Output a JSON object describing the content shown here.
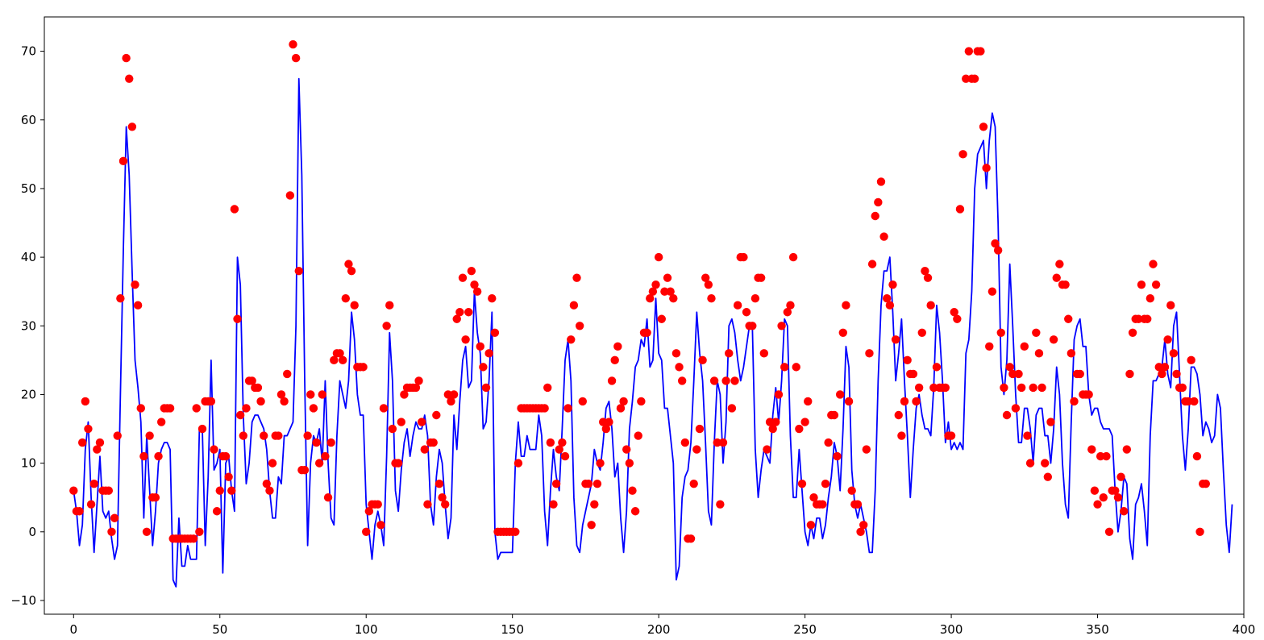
{
  "chart_data": {
    "type": "line+scatter",
    "title": "",
    "xlabel": "",
    "ylabel": "",
    "xlim": [
      -10,
      400
    ],
    "ylim": [
      -12,
      75
    ],
    "x_ticks": [
      0,
      50,
      100,
      150,
      200,
      250,
      300,
      350,
      400
    ],
    "y_ticks": [
      -10,
      0,
      10,
      20,
      30,
      40,
      50,
      60,
      70
    ],
    "grid": false,
    "legend": "none",
    "colors": {
      "line": "#0000ff",
      "points": "#ff0000"
    },
    "series": [
      {
        "type": "line",
        "x_start": 0,
        "x_step": 1,
        "values": [
          6,
          3,
          -2,
          1,
          12,
          16,
          5,
          -3,
          4,
          11,
          3,
          2,
          3,
          -1,
          -4,
          -2,
          20,
          41,
          59,
          52,
          38,
          25,
          21,
          16,
          2,
          14,
          6,
          -2,
          3,
          10,
          12,
          13,
          13,
          12,
          -7,
          -8,
          2,
          -5,
          -5,
          -2,
          -4,
          -4,
          -4,
          15,
          15,
          -2,
          8,
          25,
          9,
          10,
          12,
          -6,
          10,
          11,
          6,
          3,
          40,
          36,
          17,
          7,
          10,
          16,
          17,
          17,
          16,
          15,
          12,
          6,
          2,
          2,
          8,
          7,
          14,
          14,
          15,
          16,
          30,
          66,
          52,
          22,
          -2,
          10,
          14,
          13,
          15,
          10,
          22,
          10,
          2,
          1,
          14,
          22,
          20,
          18,
          22,
          32,
          28,
          20,
          17,
          17,
          4,
          0,
          -4,
          1,
          3,
          1,
          -2,
          11,
          29,
          22,
          6,
          3,
          9,
          13,
          15,
          11,
          14,
          16,
          15,
          15,
          17,
          14,
          4,
          1,
          8,
          12,
          10,
          4,
          -1,
          2,
          17,
          12,
          19,
          25,
          27,
          21,
          22,
          35,
          29,
          26,
          15,
          16,
          22,
          32,
          0,
          -4,
          -3,
          -3,
          -3,
          -3,
          -3,
          10,
          16,
          11,
          11,
          14,
          12,
          12,
          12,
          17,
          14,
          3,
          -2,
          6,
          12,
          8,
          6,
          15,
          25,
          28,
          22,
          5,
          -2,
          -3,
          1,
          3,
          5,
          7,
          12,
          10,
          9,
          13,
          18,
          19,
          15,
          8,
          10,
          2,
          -3,
          3,
          15,
          19,
          24,
          25,
          28,
          27,
          31,
          24,
          25,
          34,
          26,
          25,
          18,
          18,
          14,
          10,
          -7,
          -5,
          5,
          8,
          9,
          13,
          22,
          32,
          26,
          22,
          13,
          3,
          1,
          13,
          22,
          20,
          10,
          16,
          30,
          31,
          29,
          25,
          22,
          24,
          27,
          30,
          30,
          12,
          5,
          9,
          12,
          11,
          10,
          17,
          21,
          16,
          22,
          31,
          30,
          14,
          5,
          5,
          12,
          6,
          0,
          -2,
          1,
          -1,
          2,
          2,
          -1,
          1,
          5,
          8,
          13,
          11,
          6,
          15,
          27,
          24,
          9,
          4,
          2,
          4,
          2,
          0,
          -3,
          -3,
          6,
          22,
          33,
          38,
          38,
          40,
          32,
          22,
          26,
          31,
          22,
          14,
          5,
          12,
          18,
          20,
          17,
          15,
          15,
          14,
          21,
          33,
          29,
          22,
          13,
          16,
          12,
          13,
          12,
          13,
          12,
          26,
          28,
          35,
          50,
          55,
          56,
          57,
          50,
          57,
          61,
          59,
          45,
          24,
          20,
          25,
          39,
          30,
          20,
          13,
          13,
          18,
          18,
          15,
          10,
          17,
          18,
          18,
          14,
          14,
          10,
          15,
          24,
          20,
          10,
          4,
          2,
          16,
          28,
          30,
          31,
          27,
          27,
          20,
          17,
          18,
          18,
          16,
          15,
          15,
          15,
          14,
          6,
          0,
          3,
          8,
          7,
          -1,
          -4,
          4,
          5,
          7,
          3,
          -2,
          14,
          22,
          22,
          23,
          24,
          28,
          23,
          21,
          30,
          32,
          23,
          14,
          9,
          15,
          24,
          24,
          23,
          20,
          14,
          16,
          15,
          13,
          14,
          20,
          18,
          9,
          1,
          -3,
          4
        ]
      },
      {
        "type": "scatter",
        "x_start": 0,
        "x_step": 1,
        "values": [
          6,
          3,
          3,
          13,
          19,
          15,
          4,
          7,
          12,
          13,
          6,
          6,
          6,
          0,
          2,
          14,
          34,
          54,
          69,
          66,
          59,
          36,
          33,
          18,
          11,
          0,
          14,
          5,
          5,
          11,
          16,
          18,
          18,
          18,
          -1,
          -1,
          -1,
          -1,
          -1,
          -1,
          -1,
          -1,
          18,
          0,
          15,
          19,
          19,
          19,
          12,
          3,
          6,
          11,
          11,
          8,
          6,
          47,
          31,
          17,
          14,
          18,
          22,
          22,
          21,
          21,
          19,
          14,
          7,
          6,
          10,
          14,
          14,
          20,
          19,
          23,
          49,
          71,
          69,
          38,
          9,
          9,
          14,
          20,
          18,
          13,
          10,
          20,
          11,
          5,
          13,
          25,
          26,
          26,
          25,
          34,
          39,
          38,
          33,
          24,
          24,
          24,
          0,
          3,
          4,
          4,
          4,
          1,
          18,
          30,
          33,
          15,
          10,
          10,
          16,
          20,
          21,
          21,
          21,
          21,
          22,
          16,
          12,
          4,
          13,
          13,
          17,
          7,
          5,
          4,
          20,
          19,
          20,
          31,
          32,
          37,
          28,
          32,
          38,
          36,
          35,
          27,
          24,
          21,
          26,
          34,
          29,
          0,
          0,
          0,
          0,
          0,
          0,
          0,
          10,
          18,
          18,
          18,
          18,
          18,
          18,
          18,
          18,
          18,
          21,
          13,
          4,
          7,
          12,
          13,
          11,
          18,
          28,
          33,
          37,
          30,
          19,
          7,
          7,
          1,
          4,
          7,
          10,
          16,
          15,
          16,
          22,
          25,
          27,
          18,
          19,
          12,
          10,
          6,
          3,
          14,
          19,
          29,
          29,
          34,
          35,
          36,
          40,
          31,
          35,
          37,
          35,
          34,
          26,
          24,
          22,
          13,
          -1,
          -1,
          7,
          12,
          15,
          25,
          37,
          36,
          34,
          22,
          13,
          4,
          13,
          22,
          26,
          18,
          22,
          33,
          40,
          40,
          32,
          30,
          30,
          34,
          37,
          37,
          26,
          12,
          16,
          15,
          16,
          20,
          30,
          24,
          32,
          33,
          40,
          24,
          15,
          7,
          16,
          19,
          1,
          5,
          4,
          4,
          4,
          7,
          13,
          17,
          17,
          11,
          20,
          29,
          33,
          19,
          6,
          4,
          4,
          0,
          1,
          12,
          26,
          39,
          46,
          48,
          51,
          43,
          34,
          33,
          36,
          28,
          17,
          14,
          19,
          25,
          23,
          23,
          19,
          21,
          29,
          38,
          37,
          33,
          21,
          24,
          21,
          21,
          21,
          14,
          14,
          32,
          31,
          47,
          55,
          66,
          70,
          66,
          66,
          70,
          70,
          59,
          53,
          27,
          35,
          42,
          41,
          29,
          21,
          17,
          24,
          23,
          18,
          23,
          21,
          27,
          14,
          10,
          21,
          29,
          26,
          21,
          10,
          8,
          16,
          28,
          37,
          39,
          36,
          36,
          31,
          26,
          19,
          23,
          23,
          20,
          20,
          20,
          12,
          6,
          4,
          11,
          5,
          11,
          0,
          6,
          6,
          5,
          8,
          3,
          12,
          23,
          29,
          31,
          31,
          36,
          31,
          31,
          34,
          39,
          36,
          24,
          23,
          24,
          28,
          33,
          26,
          23,
          21,
          21,
          19,
          19,
          25,
          19,
          11,
          0,
          7,
          7
        ]
      }
    ]
  }
}
